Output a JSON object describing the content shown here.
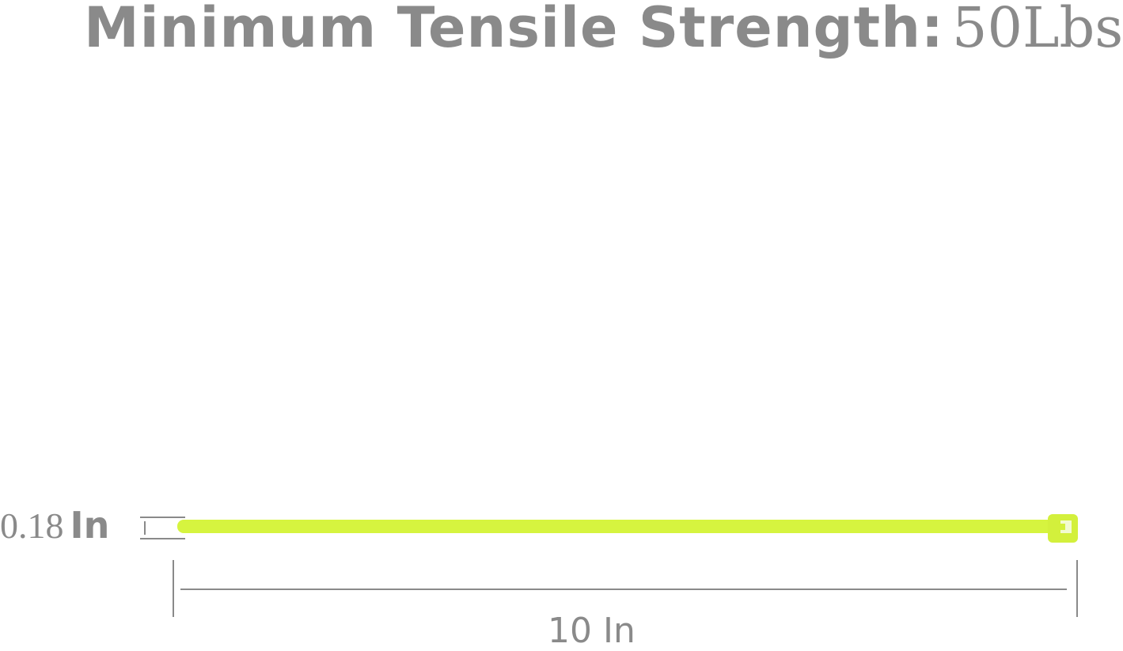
{
  "title": {
    "label": "Minimum Tensile Strength:",
    "value": "50Lbs"
  },
  "dimensions": {
    "width": {
      "value": "0.18",
      "unit": "In"
    },
    "length": "10 In"
  },
  "colors": {
    "text": "#8a8a8a",
    "cable_tie": "#d6f43f",
    "dimension_lines": "#8a8a8a"
  }
}
